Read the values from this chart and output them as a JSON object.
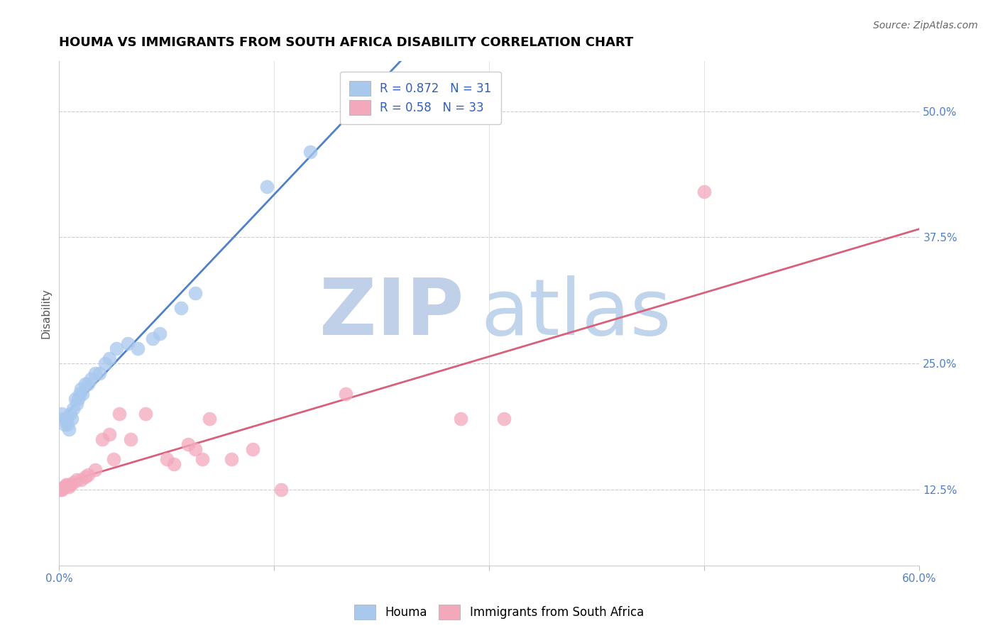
{
  "title": "HOUMA VS IMMIGRANTS FROM SOUTH AFRICA DISABILITY CORRELATION CHART",
  "source_text": "Source: ZipAtlas.com",
  "ylabel": "Disability",
  "xlim": [
    0.0,
    0.6
  ],
  "ylim": [
    0.05,
    0.55
  ],
  "xticks": [
    0.0,
    0.15,
    0.3,
    0.45,
    0.6
  ],
  "xtick_labels": [
    "0.0%",
    "",
    "",
    "",
    "60.0%"
  ],
  "yticks": [
    0.125,
    0.25,
    0.375,
    0.5
  ],
  "ytick_labels": [
    "12.5%",
    "25.0%",
    "37.5%",
    "50.0%"
  ],
  "houma_R": 0.872,
  "houma_N": 31,
  "immigrants_R": 0.58,
  "immigrants_N": 33,
  "houma_color": "#A8C8EE",
  "immigrants_color": "#F4A8BC",
  "houma_line_color": "#5080C8",
  "immigrants_line_color": "#D8607A",
  "watermark_zip_color": "#C0D0E8",
  "watermark_atlas_color": "#C0D4EC",
  "legend_R_color": "#3060BB",
  "houma_x": [
    0.002,
    0.003,
    0.004,
    0.005,
    0.006,
    0.007,
    0.008,
    0.009,
    0.01,
    0.011,
    0.012,
    0.013,
    0.014,
    0.015,
    0.016,
    0.018,
    0.02,
    0.022,
    0.025,
    0.028,
    0.032,
    0.035,
    0.04,
    0.048,
    0.055,
    0.065,
    0.07,
    0.085,
    0.095,
    0.145,
    0.175
  ],
  "houma_y": [
    0.2,
    0.195,
    0.19,
    0.195,
    0.19,
    0.185,
    0.2,
    0.195,
    0.205,
    0.215,
    0.21,
    0.215,
    0.22,
    0.225,
    0.22,
    0.23,
    0.23,
    0.235,
    0.24,
    0.24,
    0.25,
    0.255,
    0.265,
    0.27,
    0.265,
    0.275,
    0.28,
    0.305,
    0.32,
    0.425,
    0.46
  ],
  "immigrants_x": [
    0.001,
    0.002,
    0.003,
    0.004,
    0.005,
    0.006,
    0.007,
    0.008,
    0.01,
    0.012,
    0.015,
    0.018,
    0.02,
    0.025,
    0.03,
    0.035,
    0.038,
    0.042,
    0.05,
    0.06,
    0.075,
    0.08,
    0.09,
    0.095,
    0.1,
    0.105,
    0.12,
    0.135,
    0.155,
    0.2,
    0.28,
    0.31,
    0.45
  ],
  "immigrants_y": [
    0.125,
    0.125,
    0.127,
    0.128,
    0.13,
    0.13,
    0.128,
    0.13,
    0.132,
    0.135,
    0.135,
    0.138,
    0.14,
    0.145,
    0.175,
    0.18,
    0.155,
    0.2,
    0.175,
    0.2,
    0.155,
    0.15,
    0.17,
    0.165,
    0.155,
    0.195,
    0.155,
    0.165,
    0.125,
    0.22,
    0.195,
    0.195,
    0.42
  ],
  "title_fontsize": 13,
  "axis_label_fontsize": 11,
  "tick_fontsize": 11,
  "legend_fontsize": 12,
  "source_fontsize": 10
}
